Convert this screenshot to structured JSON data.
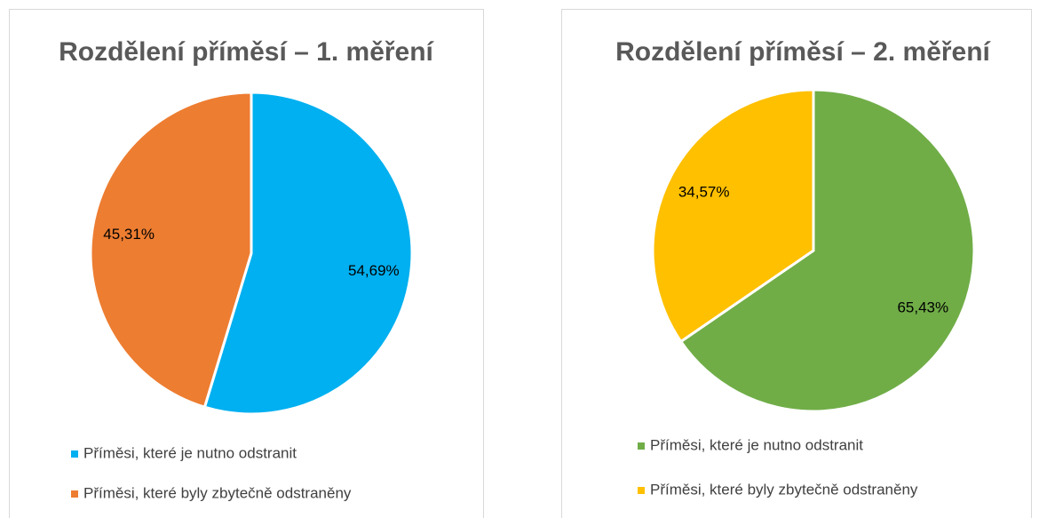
{
  "chart_data": [
    {
      "type": "pie",
      "title": "Rozdělení příměsí – 1. měření",
      "categories": [
        "Příměsi, které je nutno odstranit",
        "Příměsi, které byly zbytečně odstraněny"
      ],
      "values": [
        54.69,
        45.31
      ],
      "value_labels": [
        "54,69%",
        "45,31%"
      ],
      "colors": [
        "#00b0f0",
        "#ed7d31"
      ],
      "legend": "bottom"
    },
    {
      "type": "pie",
      "title": "Rozdělení příměsí – 2. měření",
      "categories": [
        "Příměsi, které je nutno odstranit",
        "Příměsi, které byly zbytečně odstraněny"
      ],
      "values": [
        65.43,
        34.57
      ],
      "value_labels": [
        "65,43%",
        "34,57%"
      ],
      "colors": [
        "#70ad47",
        "#ffc000"
      ],
      "legend": "bottom"
    }
  ]
}
